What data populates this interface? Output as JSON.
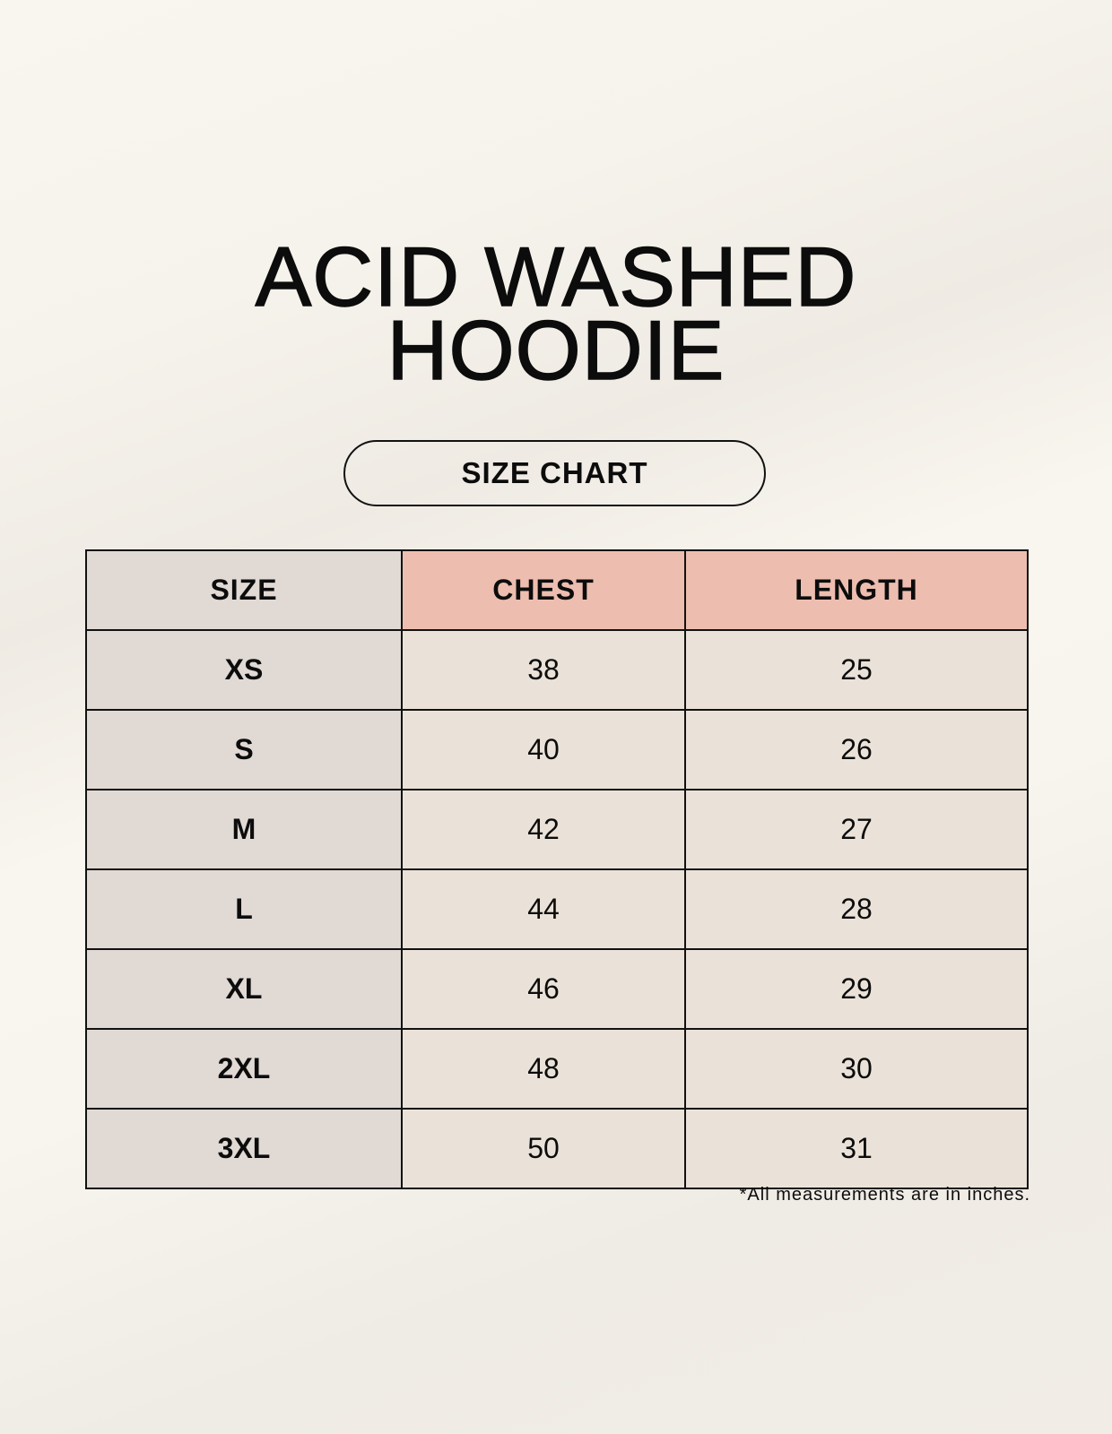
{
  "title_line1": "ACID WASHED",
  "title_line2": "HOODIE",
  "subtitle": "SIZE CHART",
  "table": {
    "headers": [
      "SIZE",
      "CHEST",
      "LENGTH"
    ],
    "rows": [
      {
        "size": "XS",
        "chest": "38",
        "length": "25"
      },
      {
        "size": "S",
        "chest": "40",
        "length": "26"
      },
      {
        "size": "M",
        "chest": "42",
        "length": "27"
      },
      {
        "size": "L",
        "chest": "44",
        "length": "28"
      },
      {
        "size": "XL",
        "chest": "46",
        "length": "29"
      },
      {
        "size": "2XL",
        "chest": "48",
        "length": "30"
      },
      {
        "size": "3XL",
        "chest": "50",
        "length": "31"
      }
    ]
  },
  "footnote": "*All measurements are in inches.",
  "colors": {
    "size_column": "#e0d9d4",
    "header_accent": "#edbdaf",
    "cell": "#eae2d8"
  }
}
